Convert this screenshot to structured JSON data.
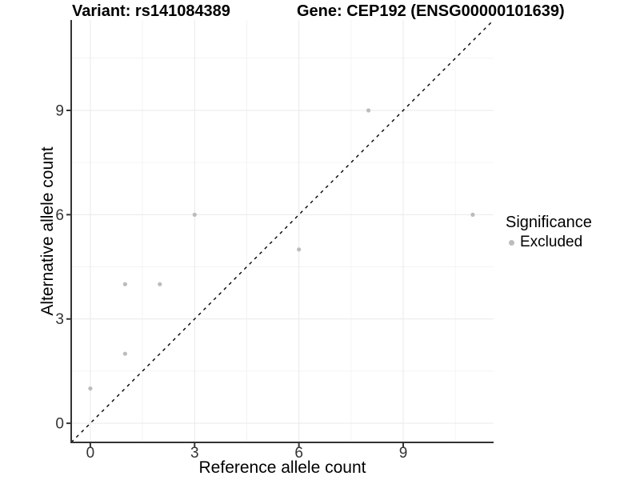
{
  "header": {
    "variant_title": "Variant: rs141084389",
    "gene_title": "Gene: CEP192 (ENSG00000101639)"
  },
  "legend": {
    "title": "Significance",
    "items": [
      {
        "label": "Excluded",
        "color": "#bcbcbc"
      }
    ]
  },
  "chart_data": {
    "type": "scatter",
    "title": "Variant: rs141084389 — Gene: CEP192 (ENSG00000101639)",
    "xlabel": "Reference allele count",
    "ylabel": "Alternative allele count",
    "xlim": [
      -0.55,
      11.6
    ],
    "ylim": [
      -0.55,
      11.6
    ],
    "x_ticks": [
      0,
      3,
      6,
      9
    ],
    "y_ticks": [
      0,
      3,
      6,
      9
    ],
    "x_minor_ticks": [
      1.5,
      4.5,
      7.5,
      10.5
    ],
    "y_minor_ticks": [
      1.5,
      4.5,
      7.5,
      10.5
    ],
    "grid": "major+minor",
    "legend_position": "right-middle",
    "series": [
      {
        "name": "Excluded",
        "color": "#bcbcbc",
        "points": [
          [
            0,
            1
          ],
          [
            1,
            2
          ],
          [
            1,
            4
          ],
          [
            2,
            4
          ],
          [
            3,
            6
          ],
          [
            6,
            5
          ],
          [
            8,
            9
          ],
          [
            11,
            6
          ]
        ]
      }
    ],
    "reference_line": {
      "type": "identity",
      "style": "dashed",
      "color": "#000000"
    }
  },
  "colors": {
    "background": "#ffffff",
    "axis_line": "#333333",
    "tick_label": "#333333",
    "grid_major": "#e9e9e9",
    "grid_minor": "#f4f4f4",
    "point": "#bcbcbc",
    "dashed_line": "#000000"
  }
}
